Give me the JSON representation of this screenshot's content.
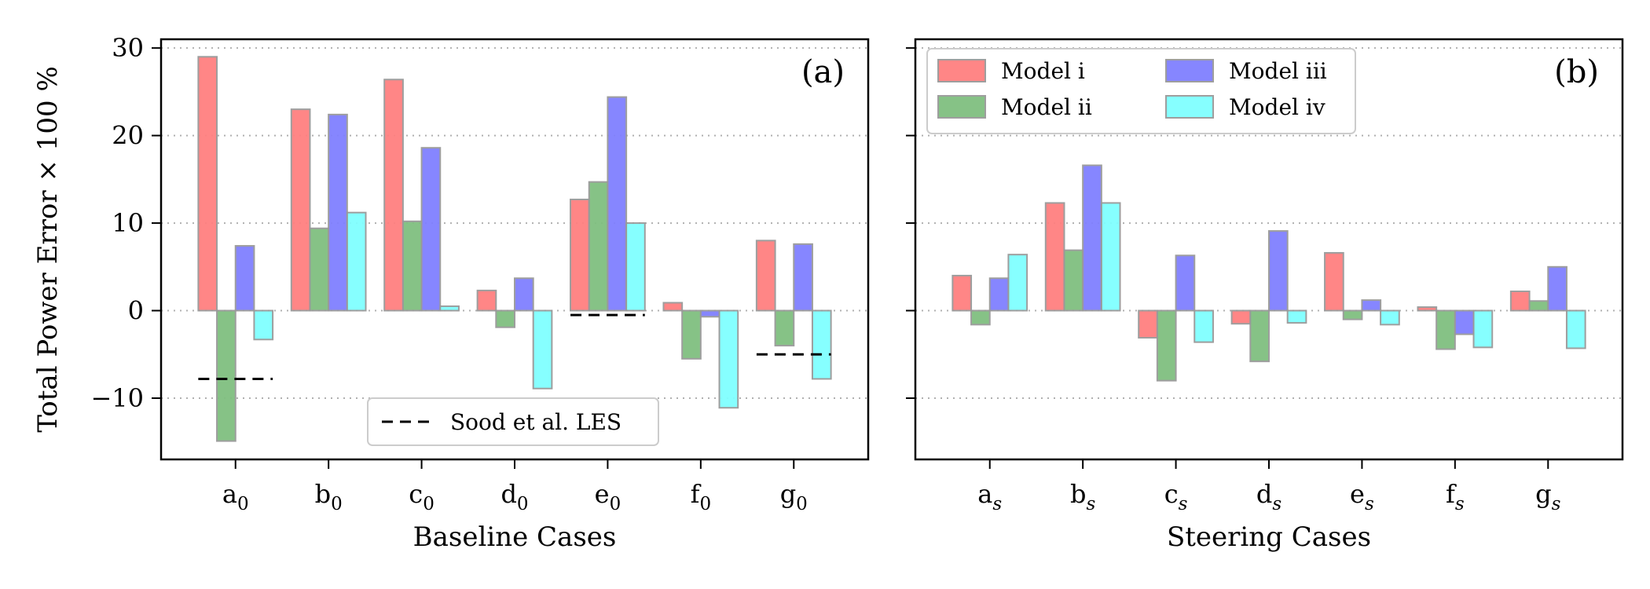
{
  "chart_data": [
    {
      "type": "bar",
      "panel": "(a)",
      "xlabel": "Baseline Cases",
      "ylabel": "Total Power Error × 100 %",
      "ylim": [
        -17,
        31
      ],
      "yticks": [
        -10,
        0,
        10,
        20,
        30
      ],
      "ytick_labels": [
        "−10",
        "0",
        "10",
        "20",
        "30"
      ],
      "grid": "horizontal dotted",
      "categories": [
        {
          "base": "a",
          "sub": "0"
        },
        {
          "base": "b",
          "sub": "0"
        },
        {
          "base": "c",
          "sub": "0"
        },
        {
          "base": "d",
          "sub": "0"
        },
        {
          "base": "e",
          "sub": "0"
        },
        {
          "base": "f",
          "sub": "0"
        },
        {
          "base": "g",
          "sub": "0"
        }
      ],
      "series": [
        {
          "name": "Model i",
          "color": "#ff8080",
          "values": [
            29.0,
            23.0,
            26.4,
            2.3,
            12.7,
            0.9,
            8.0
          ]
        },
        {
          "name": "Model ii",
          "color": "#80bf80",
          "values": [
            -14.9,
            9.4,
            10.2,
            -1.9,
            14.7,
            -5.5,
            -4.0
          ]
        },
        {
          "name": "Model iii",
          "color": "#8080ff",
          "values": [
            7.4,
            22.4,
            18.6,
            3.7,
            24.4,
            -0.7,
            7.6
          ]
        },
        {
          "name": "Model iv",
          "color": "#80ffff",
          "values": [
            -3.3,
            11.2,
            0.5,
            -8.9,
            10.0,
            -11.1,
            -7.8
          ]
        }
      ],
      "les_reference": {
        "label": "Sood et al. LES",
        "points": [
          {
            "category_index": 0,
            "value": -7.8
          },
          {
            "category_index": 4,
            "value": -0.5
          },
          {
            "category_index": 6,
            "value": -5.0
          }
        ]
      },
      "legend_placement": "lower-center"
    },
    {
      "type": "bar",
      "panel": "(b)",
      "xlabel": "Steering Cases",
      "ylim": [
        -17,
        31
      ],
      "yticks": [
        -10,
        0,
        10,
        20,
        30
      ],
      "grid": "horizontal dotted",
      "categories": [
        {
          "base": "a",
          "sub": "s"
        },
        {
          "base": "b",
          "sub": "s"
        },
        {
          "base": "c",
          "sub": "s"
        },
        {
          "base": "d",
          "sub": "s"
        },
        {
          "base": "e",
          "sub": "s"
        },
        {
          "base": "f",
          "sub": "s"
        },
        {
          "base": "g",
          "sub": "s"
        }
      ],
      "series": [
        {
          "name": "Model i",
          "color": "#ff8080",
          "values": [
            4.0,
            12.3,
            -3.1,
            -1.5,
            6.6,
            0.4,
            2.2
          ]
        },
        {
          "name": "Model ii",
          "color": "#80bf80",
          "values": [
            -1.6,
            6.9,
            -8.0,
            -5.8,
            -1.0,
            -4.4,
            1.1
          ]
        },
        {
          "name": "Model iii",
          "color": "#8080ff",
          "values": [
            3.7,
            16.6,
            6.3,
            9.1,
            1.2,
            -2.7,
            5.0
          ]
        },
        {
          "name": "Model iv",
          "color": "#80ffff",
          "values": [
            6.4,
            12.3,
            -3.6,
            -1.4,
            -1.6,
            -4.2,
            -4.3
          ]
        }
      ],
      "legend_placement": "upper-left",
      "legend_columns": 2
    }
  ]
}
